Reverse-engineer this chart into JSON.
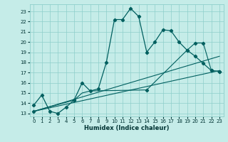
{
  "xlabel": "Humidex (Indice chaleur)",
  "bg_color": "#c5ece8",
  "grid_color": "#8ecfcb",
  "line_color": "#005f5f",
  "xlim": [
    -0.5,
    23.5
  ],
  "ylim": [
    12.7,
    23.7
  ],
  "xticks": [
    0,
    1,
    2,
    3,
    4,
    5,
    6,
    7,
    8,
    9,
    10,
    11,
    12,
    13,
    14,
    15,
    16,
    17,
    18,
    19,
    20,
    21,
    22,
    23
  ],
  "yticks": [
    13,
    14,
    15,
    16,
    17,
    18,
    19,
    20,
    21,
    22,
    23
  ],
  "main_line_x": [
    0,
    1,
    2,
    3,
    4,
    5,
    6,
    7,
    8,
    9,
    10,
    11,
    12,
    13,
    14,
    15,
    16,
    17,
    18,
    19,
    20,
    21,
    22,
    23
  ],
  "main_line_y": [
    13.8,
    14.8,
    13.2,
    13.0,
    13.6,
    14.3,
    16.0,
    15.2,
    15.4,
    18.0,
    22.2,
    22.2,
    23.3,
    22.5,
    19.0,
    20.0,
    21.2,
    21.1,
    20.0,
    19.2,
    18.6,
    17.9,
    17.2,
    17.1
  ],
  "straight_line1_x": [
    0,
    23
  ],
  "straight_line1_y": [
    13.2,
    17.2
  ],
  "straight_line2_x": [
    0,
    23
  ],
  "straight_line2_y": [
    13.2,
    18.6
  ],
  "bent_line_x": [
    0,
    5,
    6,
    7,
    14,
    19,
    20,
    21,
    22,
    23
  ],
  "bent_line_y": [
    13.2,
    14.3,
    15.0,
    15.2,
    15.3,
    19.2,
    19.9,
    19.9,
    17.2,
    17.1
  ],
  "bent_line_markers_x": [
    0,
    5,
    14,
    19,
    20,
    21,
    22,
    23
  ],
  "bent_line_markers_y": [
    13.2,
    14.3,
    15.3,
    19.2,
    19.9,
    19.9,
    17.2,
    17.1
  ]
}
